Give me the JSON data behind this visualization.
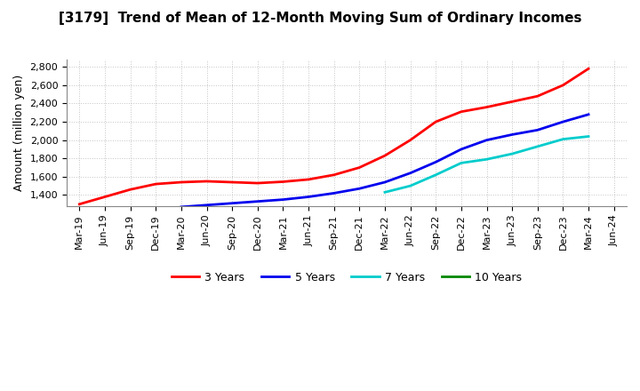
{
  "title": "[3179]  Trend of Mean of 12-Month Moving Sum of Ordinary Incomes",
  "ylabel": "Amount (million yen)",
  "ylim": [
    1280,
    2880
  ],
  "yticks": [
    1400,
    1600,
    1800,
    2000,
    2200,
    2400,
    2600,
    2800
  ],
  "background_color": "#ffffff",
  "grid_color": "#aaaaaa",
  "x_labels": [
    "Mar-19",
    "Jun-19",
    "Sep-19",
    "Dec-19",
    "Mar-20",
    "Jun-20",
    "Sep-20",
    "Dec-20",
    "Mar-21",
    "Jun-21",
    "Sep-21",
    "Dec-21",
    "Mar-22",
    "Jun-22",
    "Sep-22",
    "Dec-22",
    "Mar-23",
    "Jun-23",
    "Sep-23",
    "Dec-23",
    "Mar-24",
    "Jun-24"
  ],
  "series": {
    "3 Years": {
      "color": "#ff0000",
      "data_x": [
        0,
        1,
        2,
        3,
        4,
        5,
        6,
        7,
        8,
        9,
        10,
        11,
        12,
        13,
        14,
        15,
        16,
        17,
        18,
        19,
        20
      ],
      "data_y": [
        1300,
        1380,
        1460,
        1520,
        1540,
        1550,
        1540,
        1530,
        1545,
        1570,
        1620,
        1700,
        1830,
        2000,
        2200,
        2310,
        2360,
        2420,
        2480,
        2600,
        2780
      ]
    },
    "5 Years": {
      "color": "#0000ee",
      "data_x": [
        4,
        5,
        6,
        7,
        8,
        9,
        10,
        11,
        12,
        13,
        14,
        15,
        16,
        17,
        18,
        19,
        20
      ],
      "data_y": [
        1270,
        1290,
        1310,
        1330,
        1350,
        1380,
        1420,
        1470,
        1540,
        1640,
        1760,
        1900,
        2000,
        2060,
        2110,
        2200,
        2280
      ]
    },
    "7 Years": {
      "color": "#00cccc",
      "data_x": [
        12,
        13,
        14,
        15,
        16,
        17,
        18,
        19,
        20
      ],
      "data_y": [
        1430,
        1500,
        1620,
        1750,
        1790,
        1850,
        1930,
        2010,
        2040
      ]
    },
    "10 Years": {
      "color": "#008800",
      "data_x": [],
      "data_y": []
    }
  },
  "legend_order": [
    "3 Years",
    "5 Years",
    "7 Years",
    "10 Years"
  ]
}
